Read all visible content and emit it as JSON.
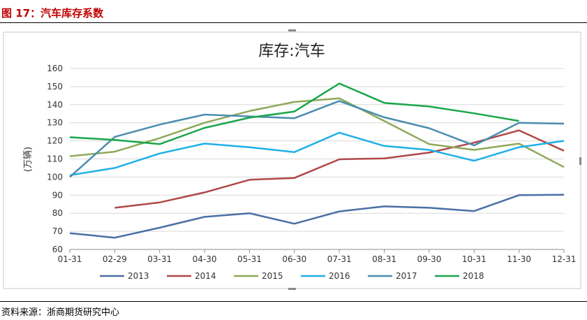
{
  "figure": {
    "title": "图 17：汽车库存系数",
    "source": "资料来源：浙商期货研究中心"
  },
  "chart_data": {
    "type": "line",
    "title": "库存:汽车",
    "ylabel": "(万辆)",
    "xlabel": "",
    "ylim": [
      60,
      160
    ],
    "yticks": [
      60,
      70,
      80,
      90,
      100,
      110,
      120,
      130,
      140,
      150,
      160
    ],
    "categories": [
      "01-31",
      "02-29",
      "03-31",
      "04-30",
      "05-31",
      "06-30",
      "07-31",
      "08-31",
      "09-30",
      "10-31",
      "11-30",
      "12-31"
    ],
    "legend_position": "bottom",
    "grid": true,
    "series": [
      {
        "name": "2013",
        "color": "#4a6fa5",
        "values": [
          69,
          66.5,
          72,
          78,
          80,
          74.2,
          81,
          83.8,
          83,
          81.2,
          90,
          90.2
        ]
      },
      {
        "name": "2014",
        "color": "#b04848",
        "values": [
          null,
          83,
          86,
          91.5,
          98.5,
          99.5,
          109.8,
          110.3,
          113.5,
          119,
          125.8,
          114.5
        ]
      },
      {
        "name": "2015",
        "color": "#8fa85a",
        "values": [
          111.5,
          114,
          121.5,
          130,
          136.5,
          141.5,
          143.5,
          131,
          118.2,
          115,
          118.5,
          105.5
        ]
      },
      {
        "name": "2016",
        "color": "#1fb0e8",
        "values": [
          101,
          105,
          113,
          118.5,
          116.5,
          113.8,
          124.5,
          117.2,
          115,
          109,
          116.5,
          120
        ]
      },
      {
        "name": "2017",
        "color": "#4a8db0",
        "values": [
          100,
          122.2,
          129,
          134.5,
          133.5,
          132.5,
          142,
          133,
          127,
          117.5,
          130,
          129.5
        ]
      },
      {
        "name": "2018",
        "color": "#1aa64a",
        "values": [
          122,
          120.5,
          118.2,
          127.2,
          132.8,
          136.2,
          151.7,
          141,
          139,
          135.2,
          131,
          null
        ]
      }
    ]
  }
}
